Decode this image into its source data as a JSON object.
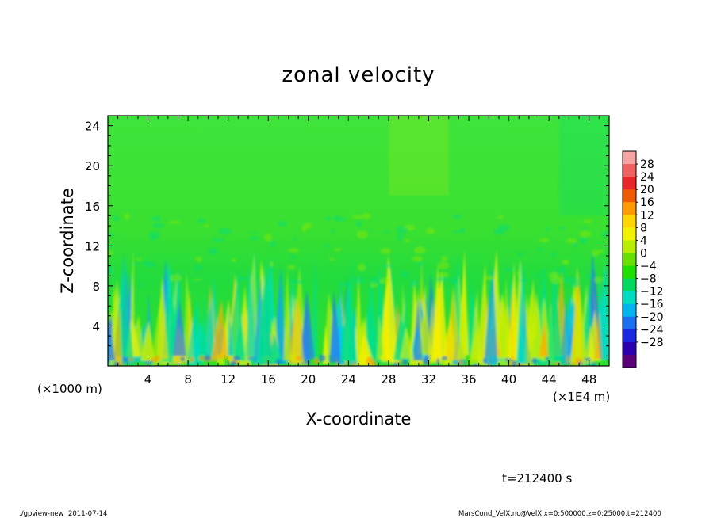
{
  "chart_data": {
    "type": "heatmap",
    "title": "zonal velocity",
    "xlabel": "X-coordinate",
    "ylabel": "Z-coordinate",
    "x_unit_left": "(×1000 m)",
    "x_unit_right": "(×1E4 m)",
    "xlim": [
      0,
      50
    ],
    "ylim": [
      0,
      25
    ],
    "x_ticks": [
      4,
      8,
      12,
      16,
      20,
      24,
      28,
      32,
      36,
      40,
      44,
      48
    ],
    "y_ticks": [
      4,
      8,
      12,
      16,
      20,
      24
    ],
    "colorbar": {
      "levels": [
        28,
        24,
        20,
        16,
        12,
        8,
        4,
        0,
        -4,
        -8,
        -12,
        -16,
        -20,
        -24,
        -28
      ],
      "colors": [
        "#f6a3a3",
        "#f06060",
        "#e82828",
        "#f05a00",
        "#ff9900",
        "#ffd500",
        "#f2f200",
        "#b8ee00",
        "#66e000",
        "#1ee000",
        "#00d860",
        "#00dcc0",
        "#00b4f0",
        "#1a6ef0",
        "#1a28e0",
        "#2a00b0",
        "#5a007a"
      ]
    },
    "time_label": "t=212400 s"
  },
  "footer": {
    "left": "./gpview-new  2011-07-14",
    "right": "MarsCond_VelX.nc@VelX,x=0:500000,z=0:25000,t=212400"
  }
}
